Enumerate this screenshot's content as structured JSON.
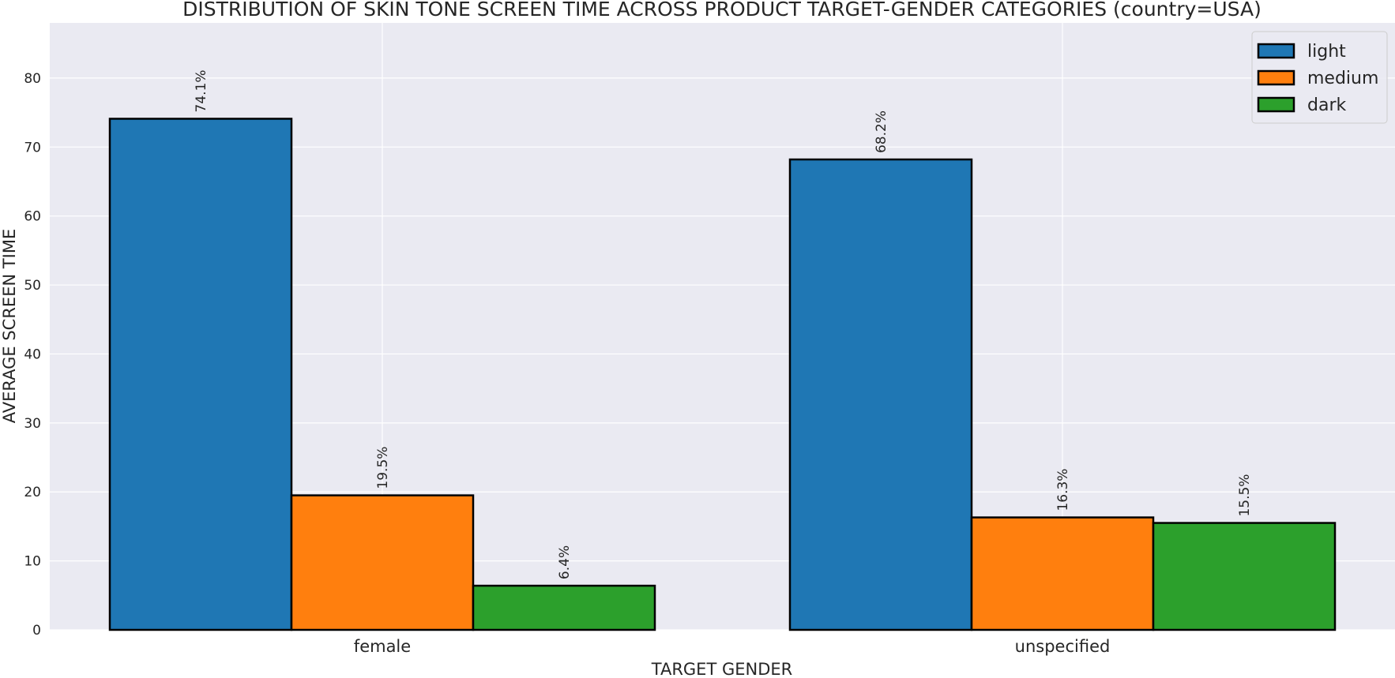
{
  "chart_data": {
    "type": "bar",
    "title": "DISTRIBUTION OF SKIN TONE SCREEN TIME ACROSS PRODUCT TARGET-GENDER CATEGORIES (country=USA)",
    "xlabel": "TARGET GENDER",
    "ylabel": "AVERAGE SCREEN TIME",
    "categories": [
      "female",
      "unspecified"
    ],
    "series": [
      {
        "name": "light",
        "color": "#1f77b4",
        "values": [
          74.1,
          68.2
        ],
        "labels": [
          "74.1%",
          "68.2%"
        ]
      },
      {
        "name": "medium",
        "color": "#ff7f0e",
        "values": [
          19.5,
          16.3
        ],
        "labels": [
          "19.5%",
          "16.3%"
        ]
      },
      {
        "name": "dark",
        "color": "#2ca02c",
        "values": [
          6.4,
          15.5
        ],
        "labels": [
          "6.4%",
          "15.5%"
        ]
      }
    ],
    "ylim": [
      0,
      88
    ],
    "yticks": [
      0,
      10,
      20,
      30,
      40,
      50,
      60,
      70,
      80
    ],
    "grid": true,
    "legend_position": "top-right",
    "background_color": "#eaeaf2",
    "grid_color": "#ffffff",
    "edge_color": "#000000"
  }
}
